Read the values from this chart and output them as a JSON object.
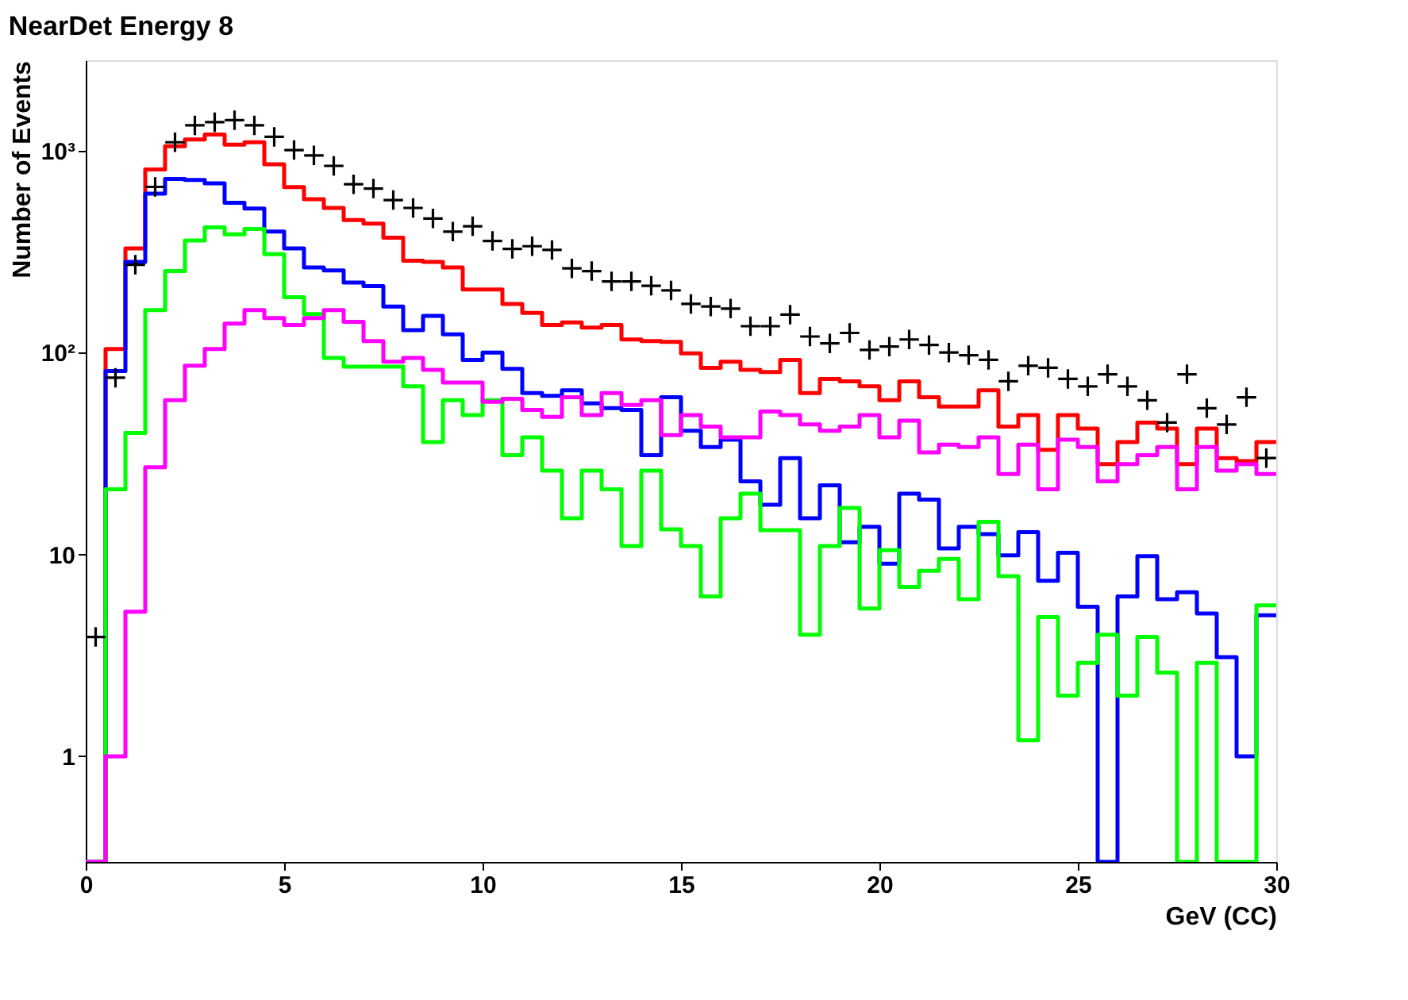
{
  "chart_data": {
    "type": "histogram",
    "title": "NearDet Energy 8",
    "xlabel": "GeV (CC)",
    "ylabel": "Number of Events",
    "bins": [
      0,
      0.5,
      1,
      1.5,
      2,
      2.5,
      3,
      3.5,
      4,
      4.5,
      5,
      5.5,
      6,
      6.5,
      7,
      7.5,
      8,
      8.5,
      9,
      9.5,
      10,
      10.5,
      11,
      11.5,
      12,
      12.5,
      13,
      13.5,
      14,
      14.5,
      15,
      15.5,
      16,
      16.5,
      17,
      17.5,
      18,
      18.5,
      19,
      19.5,
      20,
      20.5,
      21,
      21.5,
      22,
      22.5,
      23,
      23.5,
      24,
      24.5,
      25,
      25.5,
      26,
      26.5,
      27,
      27.5,
      28,
      28.5,
      29,
      29.5,
      30
    ],
    "series": [
      {
        "color": "#ff0000",
        "values": [
          null,
          104,
          328,
          806,
          1050,
          1135,
          1200,
          1070,
          1100,
          855,
          660,
          575,
          520,
          453,
          435,
          370,
          285,
          281,
          264,
          205,
          205,
          174,
          157,
          137,
          141,
          133,
          137,
          116,
          114,
          113,
          99,
          84,
          90,
          82,
          80,
          92,
          63,
          74,
          72,
          68,
          58,
          72,
          60,
          54,
          54,
          65,
          43,
          49,
          33,
          49,
          42,
          28,
          36,
          45,
          42,
          28,
          42,
          30,
          29,
          36
        ]
      },
      {
        "color": "#0000ff",
        "values": [
          null,
          81,
          281,
          612,
          723,
          715,
          689,
          552,
          517,
          397,
          328,
          264,
          255,
          222,
          213,
          169,
          129,
          152,
          123,
          92,
          100,
          83,
          63,
          61,
          65,
          56,
          53,
          52,
          31,
          60,
          41,
          34,
          37,
          23,
          17.6,
          30,
          15.1,
          22,
          11.5,
          13.7,
          9.0,
          20,
          18.7,
          10.7,
          13.7,
          12.6,
          9.9,
          12.9,
          7.4,
          10.2,
          5.5,
          null,
          6.2,
          9.8,
          6.0,
          6.5,
          5.1,
          3.1,
          1.0,
          5.0
        ]
      },
      {
        "color": "#00ff00",
        "values": [
          null,
          21,
          40,
          162,
          253,
          359,
          417,
          385,
          409,
          307,
          188,
          155,
          94,
          85,
          85,
          85,
          68,
          36,
          58,
          49,
          58,
          31,
          38,
          26,
          15.1,
          26,
          21,
          11,
          26,
          13.3,
          11,
          6.2,
          15.1,
          20,
          13.2,
          13.2,
          4.0,
          11,
          17,
          5.4,
          10.5,
          6.9,
          8.3,
          9.5,
          6.0,
          14.5,
          7.8,
          1.2,
          4.9,
          2.0,
          2.9,
          4.0,
          2.0,
          3.9,
          2.6,
          null,
          2.9,
          null,
          null,
          5.6
        ]
      },
      {
        "color": "#ff00ff",
        "values": [
          null,
          1.0,
          5.2,
          27,
          58,
          86,
          104,
          139,
          162,
          148,
          137,
          148,
          162,
          142,
          114,
          90,
          94,
          82,
          71,
          71,
          57,
          59,
          52,
          48,
          60,
          49,
          63,
          55,
          58,
          39,
          49,
          43,
          38,
          38,
          51,
          49,
          44,
          41,
          43,
          49,
          38,
          46,
          32,
          35,
          34,
          38,
          25,
          35,
          21,
          37,
          34,
          23,
          28,
          31,
          34,
          21,
          34,
          26,
          28,
          25
        ]
      },
      {
        "type": "scatter",
        "marker": "cross",
        "color": "#000000",
        "x": [
          0.25,
          0.75,
          1.25,
          1.75,
          2.25,
          2.75,
          3.25,
          3.75,
          4.25,
          4.75,
          5.25,
          5.75,
          6.25,
          6.75,
          7.25,
          7.75,
          8.25,
          8.75,
          9.25,
          9.75,
          10.25,
          10.75,
          11.25,
          11.75,
          12.25,
          12.75,
          13.25,
          13.75,
          14.25,
          14.75,
          15.25,
          15.75,
          16.25,
          16.75,
          17.25,
          17.75,
          18.25,
          18.75,
          19.25,
          19.75,
          20.25,
          20.75,
          21.25,
          21.75,
          22.25,
          22.75,
          23.25,
          23.75,
          24.25,
          24.75,
          25.25,
          25.75,
          26.25,
          26.75,
          27.25,
          27.75,
          28.25,
          28.75,
          29.25,
          29.75
        ],
        "values": [
          3.9,
          75,
          272,
          661,
          1100,
          1334,
          1383,
          1415,
          1334,
          1170,
          1006,
          947,
          840,
          681,
          649,
          569,
          520,
          461,
          397,
          422,
          357,
          326,
          336,
          322,
          261,
          253,
          225,
          225,
          214,
          203,
          174,
          169,
          165,
          135,
          135,
          154,
          120,
          111,
          125,
          103,
          107,
          116,
          109,
          100,
          97,
          92,
          72,
          86,
          84,
          74,
          68,
          78,
          68,
          58,
          45,
          78,
          53,
          44,
          60,
          30
        ]
      }
    ],
    "xlim": [
      0,
      30
    ],
    "xticks": [
      0,
      5,
      10,
      15,
      20,
      25,
      30
    ],
    "ylim": [
      0.3,
      2800
    ],
    "yticks": [
      1,
      10,
      {
        "value": 100,
        "label": "10²"
      },
      {
        "value": 1000,
        "label": "10³"
      }
    ],
    "log": true,
    "grid": false
  }
}
